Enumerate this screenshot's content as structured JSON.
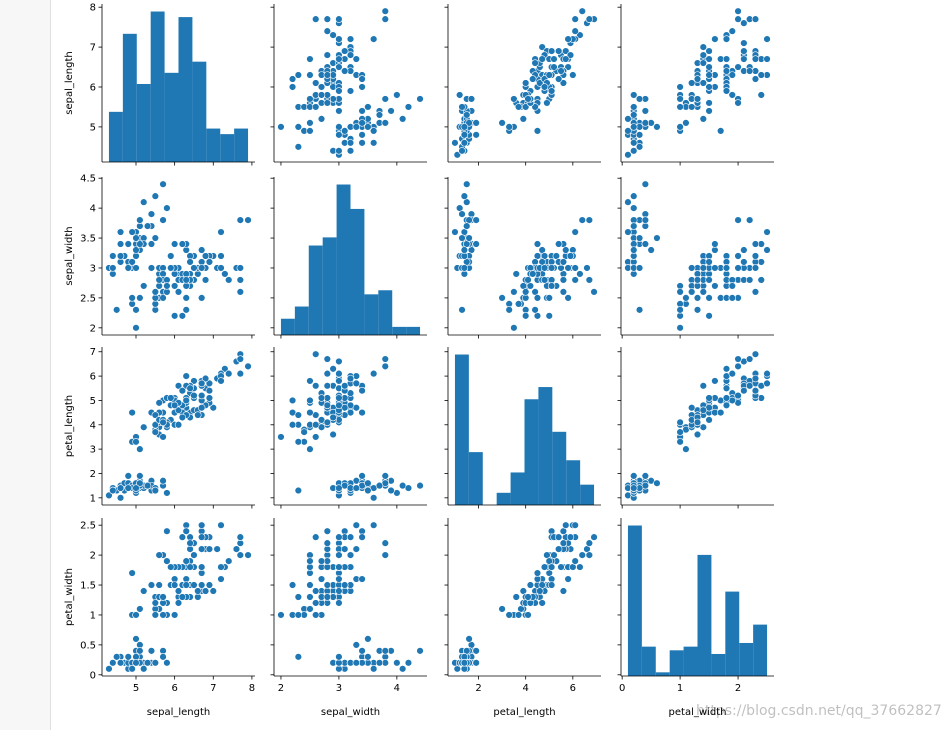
{
  "colors": {
    "marker": "#1f77b4",
    "edge": "#ffffff",
    "axis": "#000000"
  },
  "watermark": "https://blog.csdn.net/qq_37662827",
  "chart_data": {
    "type": "pairplot",
    "title": "",
    "variables": [
      "sepal_length",
      "sepal_width",
      "petal_length",
      "petal_width"
    ],
    "axis_labels": {
      "x": [
        "sepal_length",
        "sepal_width",
        "petal_length",
        "petal_width"
      ],
      "y": [
        "sepal_length",
        "sepal_width",
        "petal_length",
        "petal_width"
      ]
    },
    "ranges": {
      "sepal_length": [
        4.12,
        8.08
      ],
      "sepal_width": [
        1.88,
        4.52
      ],
      "petal_length": [
        0.705,
        7.195
      ],
      "petal_width": [
        -0.02,
        2.62
      ]
    },
    "ticks": {
      "sepal_length": [
        5,
        6,
        7,
        8
      ],
      "sepal_width": [
        2,
        3,
        4
      ],
      "petal_length": [
        2,
        4,
        6
      ],
      "petal_width": [
        0,
        1,
        2
      ]
    },
    "y_ticks": {
      "sepal_length": [
        5,
        6,
        7,
        8
      ],
      "sepal_width": [
        2.0,
        2.5,
        3.0,
        3.5,
        4.0,
        4.5
      ],
      "petal_length": [
        1,
        2,
        3,
        4,
        5,
        6,
        7
      ],
      "petal_width": [
        0.0,
        0.5,
        1.0,
        1.5,
        2.0,
        2.5
      ]
    },
    "histograms": {
      "sepal_length": {
        "edges": [
          4.3,
          4.66,
          5.02,
          5.38,
          5.74,
          6.1,
          6.46,
          6.82,
          7.18,
          7.54,
          7.9
        ],
        "counts": [
          9,
          23,
          14,
          27,
          16,
          26,
          18,
          6,
          5,
          6
        ]
      },
      "sepal_width": {
        "edges": [
          2.0,
          2.24,
          2.48,
          2.72,
          2.96,
          3.2,
          3.44,
          3.68,
          3.92,
          4.16,
          4.4
        ],
        "counts": [
          4,
          7,
          22,
          24,
          37,
          31,
          10,
          11,
          2,
          2
        ]
      },
      "petal_length": {
        "edges": [
          1.0,
          1.59,
          2.18,
          2.77,
          3.36,
          3.95,
          4.54,
          5.13,
          5.72,
          6.31,
          6.9
        ],
        "counts": [
          37,
          13,
          0,
          3,
          8,
          26,
          29,
          18,
          11,
          5
        ]
      },
      "petal_width": {
        "edges": [
          0.1,
          0.34,
          0.58,
          0.82,
          1.06,
          1.3,
          1.54,
          1.78,
          2.02,
          2.26,
          2.5
        ],
        "counts": [
          41,
          8,
          1,
          7,
          8,
          33,
          6,
          23,
          9,
          14
        ]
      }
    },
    "samples": [
      [
        5.1,
        3.5,
        1.4,
        0.2
      ],
      [
        4.9,
        3.0,
        1.4,
        0.2
      ],
      [
        4.7,
        3.2,
        1.3,
        0.2
      ],
      [
        4.6,
        3.1,
        1.5,
        0.2
      ],
      [
        5.0,
        3.6,
        1.4,
        0.2
      ],
      [
        5.4,
        3.9,
        1.7,
        0.4
      ],
      [
        4.6,
        3.4,
        1.4,
        0.3
      ],
      [
        5.0,
        3.4,
        1.5,
        0.2
      ],
      [
        4.4,
        2.9,
        1.4,
        0.2
      ],
      [
        4.9,
        3.1,
        1.5,
        0.1
      ],
      [
        5.4,
        3.7,
        1.5,
        0.2
      ],
      [
        4.8,
        3.4,
        1.6,
        0.2
      ],
      [
        4.8,
        3.0,
        1.4,
        0.1
      ],
      [
        4.3,
        3.0,
        1.1,
        0.1
      ],
      [
        5.8,
        4.0,
        1.2,
        0.2
      ],
      [
        5.7,
        4.4,
        1.5,
        0.4
      ],
      [
        5.4,
        3.9,
        1.3,
        0.4
      ],
      [
        5.1,
        3.5,
        1.4,
        0.3
      ],
      [
        5.7,
        3.8,
        1.7,
        0.3
      ],
      [
        5.1,
        3.8,
        1.5,
        0.3
      ],
      [
        5.4,
        3.4,
        1.7,
        0.2
      ],
      [
        5.1,
        3.7,
        1.5,
        0.4
      ],
      [
        4.6,
        3.6,
        1.0,
        0.2
      ],
      [
        5.1,
        3.3,
        1.7,
        0.5
      ],
      [
        4.8,
        3.4,
        1.9,
        0.2
      ],
      [
        5.0,
        3.0,
        1.6,
        0.2
      ],
      [
        5.0,
        3.4,
        1.6,
        0.4
      ],
      [
        5.2,
        3.5,
        1.5,
        0.2
      ],
      [
        5.2,
        3.4,
        1.4,
        0.2
      ],
      [
        4.7,
        3.2,
        1.6,
        0.2
      ],
      [
        4.8,
        3.1,
        1.6,
        0.2
      ],
      [
        5.4,
        3.4,
        1.5,
        0.4
      ],
      [
        5.2,
        4.1,
        1.5,
        0.1
      ],
      [
        5.5,
        4.2,
        1.4,
        0.2
      ],
      [
        4.9,
        3.1,
        1.5,
        0.2
      ],
      [
        5.0,
        3.2,
        1.2,
        0.2
      ],
      [
        5.5,
        3.5,
        1.3,
        0.2
      ],
      [
        4.9,
        3.6,
        1.4,
        0.1
      ],
      [
        4.4,
        3.0,
        1.3,
        0.2
      ],
      [
        5.1,
        3.4,
        1.5,
        0.2
      ],
      [
        5.0,
        3.5,
        1.3,
        0.3
      ],
      [
        4.5,
        2.3,
        1.3,
        0.3
      ],
      [
        4.4,
        3.2,
        1.3,
        0.2
      ],
      [
        5.0,
        3.5,
        1.6,
        0.6
      ],
      [
        5.1,
        3.8,
        1.9,
        0.4
      ],
      [
        4.8,
        3.0,
        1.4,
        0.3
      ],
      [
        5.1,
        3.8,
        1.6,
        0.2
      ],
      [
        4.6,
        3.2,
        1.4,
        0.2
      ],
      [
        5.3,
        3.7,
        1.5,
        0.2
      ],
      [
        5.0,
        3.3,
        1.4,
        0.2
      ],
      [
        7.0,
        3.2,
        4.7,
        1.4
      ],
      [
        6.4,
        3.2,
        4.5,
        1.5
      ],
      [
        6.9,
        3.1,
        4.9,
        1.5
      ],
      [
        5.5,
        2.3,
        4.0,
        1.3
      ],
      [
        6.5,
        2.8,
        4.6,
        1.5
      ],
      [
        5.7,
        2.8,
        4.5,
        1.3
      ],
      [
        6.3,
        3.3,
        4.7,
        1.6
      ],
      [
        4.9,
        2.4,
        3.3,
        1.0
      ],
      [
        6.6,
        2.9,
        4.6,
        1.3
      ],
      [
        5.2,
        2.7,
        3.9,
        1.4
      ],
      [
        5.0,
        2.0,
        3.5,
        1.0
      ],
      [
        5.9,
        3.0,
        4.2,
        1.5
      ],
      [
        6.0,
        2.2,
        4.0,
        1.0
      ],
      [
        6.1,
        2.9,
        4.7,
        1.4
      ],
      [
        5.6,
        2.9,
        3.6,
        1.3
      ],
      [
        6.7,
        3.1,
        4.4,
        1.4
      ],
      [
        5.6,
        3.0,
        4.5,
        1.5
      ],
      [
        5.8,
        2.7,
        4.1,
        1.0
      ],
      [
        6.2,
        2.2,
        4.5,
        1.5
      ],
      [
        5.6,
        2.5,
        3.9,
        1.1
      ],
      [
        5.9,
        3.2,
        4.8,
        1.8
      ],
      [
        6.1,
        2.8,
        4.0,
        1.3
      ],
      [
        6.3,
        2.5,
        4.9,
        1.5
      ],
      [
        6.1,
        2.8,
        4.7,
        1.2
      ],
      [
        6.4,
        2.9,
        4.3,
        1.3
      ],
      [
        6.6,
        3.0,
        4.4,
        1.4
      ],
      [
        6.8,
        2.8,
        4.8,
        1.4
      ],
      [
        6.7,
        3.0,
        5.0,
        1.7
      ],
      [
        6.0,
        2.9,
        4.5,
        1.5
      ],
      [
        5.7,
        2.6,
        3.5,
        1.0
      ],
      [
        5.5,
        2.4,
        3.8,
        1.1
      ],
      [
        5.5,
        2.4,
        3.7,
        1.0
      ],
      [
        5.8,
        2.7,
        3.9,
        1.2
      ],
      [
        6.0,
        2.7,
        5.1,
        1.6
      ],
      [
        5.4,
        3.0,
        4.5,
        1.5
      ],
      [
        6.0,
        3.4,
        4.5,
        1.6
      ],
      [
        6.7,
        3.1,
        4.7,
        1.5
      ],
      [
        6.3,
        2.3,
        4.4,
        1.3
      ],
      [
        5.6,
        3.0,
        4.1,
        1.3
      ],
      [
        5.5,
        2.5,
        4.0,
        1.3
      ],
      [
        5.5,
        2.6,
        4.4,
        1.2
      ],
      [
        6.1,
        3.0,
        4.6,
        1.4
      ],
      [
        5.8,
        2.6,
        4.0,
        1.2
      ],
      [
        5.0,
        2.3,
        3.3,
        1.0
      ],
      [
        5.6,
        2.7,
        4.2,
        1.3
      ],
      [
        5.7,
        3.0,
        4.2,
        1.2
      ],
      [
        5.7,
        2.9,
        4.2,
        1.3
      ],
      [
        6.2,
        2.9,
        4.3,
        1.3
      ],
      [
        5.1,
        2.5,
        3.0,
        1.1
      ],
      [
        5.7,
        2.8,
        4.1,
        1.3
      ],
      [
        6.3,
        3.3,
        6.0,
        2.5
      ],
      [
        5.8,
        2.7,
        5.1,
        1.9
      ],
      [
        7.1,
        3.0,
        5.9,
        2.1
      ],
      [
        6.3,
        2.9,
        5.6,
        1.8
      ],
      [
        6.5,
        3.0,
        5.8,
        2.2
      ],
      [
        7.6,
        3.0,
        6.6,
        2.1
      ],
      [
        4.9,
        2.5,
        4.5,
        1.7
      ],
      [
        7.3,
        2.9,
        6.3,
        1.8
      ],
      [
        6.7,
        2.5,
        5.8,
        1.8
      ],
      [
        7.2,
        3.6,
        6.1,
        2.5
      ],
      [
        6.5,
        3.2,
        5.1,
        2.0
      ],
      [
        6.4,
        2.7,
        5.3,
        1.9
      ],
      [
        6.8,
        3.0,
        5.5,
        2.1
      ],
      [
        5.7,
        2.5,
        5.0,
        2.0
      ],
      [
        5.8,
        2.8,
        5.1,
        2.4
      ],
      [
        6.4,
        3.2,
        5.3,
        2.3
      ],
      [
        6.5,
        3.0,
        5.5,
        1.8
      ],
      [
        7.7,
        3.8,
        6.7,
        2.2
      ],
      [
        7.7,
        2.6,
        6.9,
        2.3
      ],
      [
        6.0,
        2.2,
        5.0,
        1.5
      ],
      [
        6.9,
        3.2,
        5.7,
        2.3
      ],
      [
        5.6,
        2.8,
        4.9,
        2.0
      ],
      [
        7.7,
        2.8,
        6.7,
        2.0
      ],
      [
        6.3,
        2.7,
        4.9,
        1.8
      ],
      [
        6.7,
        3.3,
        5.7,
        2.1
      ],
      [
        7.2,
        3.2,
        6.0,
        1.8
      ],
      [
        6.2,
        2.8,
        4.8,
        1.8
      ],
      [
        6.1,
        3.0,
        4.9,
        1.8
      ],
      [
        6.4,
        2.8,
        5.6,
        2.1
      ],
      [
        7.2,
        3.0,
        5.8,
        1.6
      ],
      [
        7.4,
        2.8,
        6.1,
        1.9
      ],
      [
        7.9,
        3.8,
        6.4,
        2.0
      ],
      [
        6.4,
        2.8,
        5.6,
        2.2
      ],
      [
        6.3,
        2.8,
        5.1,
        1.5
      ],
      [
        6.1,
        2.6,
        5.6,
        1.4
      ],
      [
        7.7,
        3.0,
        6.1,
        2.3
      ],
      [
        6.3,
        3.4,
        5.6,
        2.4
      ],
      [
        6.4,
        3.1,
        5.5,
        1.8
      ],
      [
        6.0,
        3.0,
        4.8,
        1.8
      ],
      [
        6.9,
        3.1,
        5.4,
        2.1
      ],
      [
        6.7,
        3.1,
        5.6,
        2.4
      ],
      [
        6.9,
        3.1,
        5.1,
        2.3
      ],
      [
        5.8,
        2.7,
        5.1,
        1.9
      ],
      [
        6.8,
        3.2,
        5.9,
        2.3
      ],
      [
        6.7,
        3.3,
        5.7,
        2.5
      ],
      [
        6.7,
        3.0,
        5.2,
        2.3
      ],
      [
        6.3,
        2.5,
        5.0,
        1.9
      ],
      [
        6.5,
        3.0,
        5.2,
        2.0
      ],
      [
        6.2,
        3.4,
        5.4,
        2.3
      ],
      [
        5.9,
        3.0,
        5.1,
        1.8
      ]
    ]
  }
}
